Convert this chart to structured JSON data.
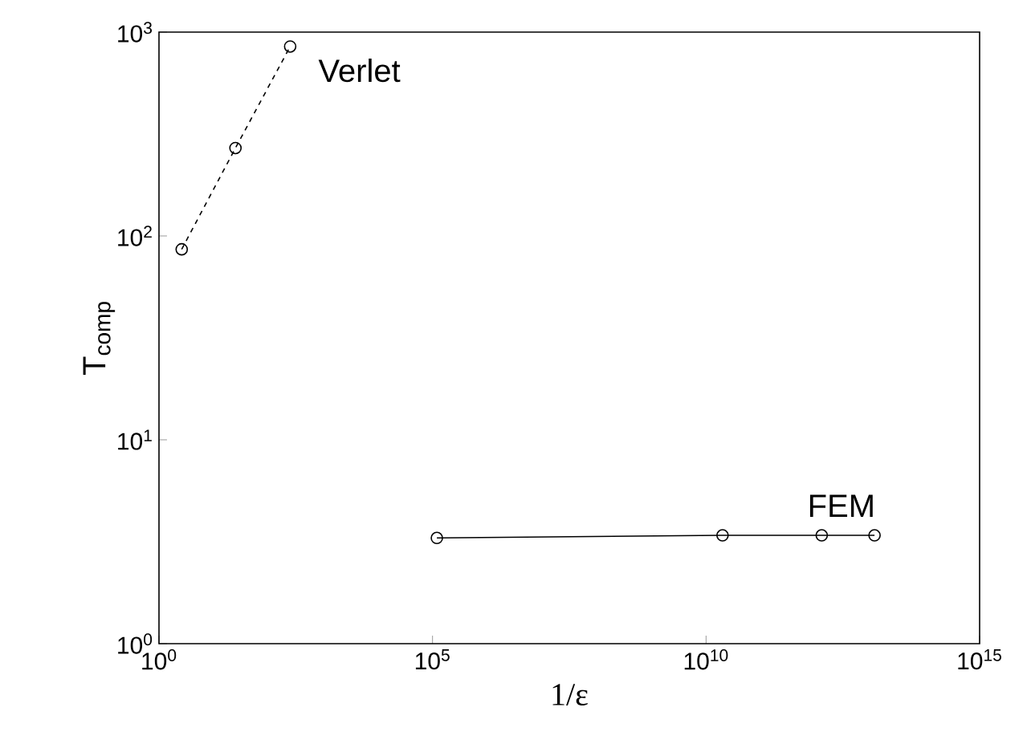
{
  "chart_data": {
    "type": "line",
    "xlabel": "1/ε",
    "ylabel": "T$_{comp}$",
    "log": "xy",
    "marker": "circle",
    "xlim": [
      1,
      1000000000000000.0
    ],
    "ylim": [
      1,
      1000
    ],
    "xticks": [
      {
        "value": 1,
        "label": "10$^{0}$"
      },
      {
        "value": 100000.0,
        "label": "10$^{5}$"
      },
      {
        "value": 10000000000.0,
        "label": "10$^{10}$"
      },
      {
        "value": 1000000000000000.0,
        "label": "10$^{15}$"
      }
    ],
    "yticks": [
      {
        "value": 1,
        "label": "10$^{0}$"
      },
      {
        "value": 10,
        "label": "10$^{1}$"
      },
      {
        "value": 100,
        "label": "10$^{2}$"
      },
      {
        "value": 1000,
        "label": "10$^{3}$"
      }
    ],
    "series": [
      {
        "name": "Verlet",
        "color": "#000000",
        "line_style": "dashed",
        "x": [
          2.6,
          25,
          250
        ],
        "values": [
          86,
          270,
          850
        ]
      },
      {
        "name": "FEM",
        "color": "#000000",
        "line_style": "solid",
        "x": [
          120000.0,
          20000000000.0,
          1300000000000.0,
          12000000000000.0
        ],
        "values": [
          3.3,
          3.4,
          3.4,
          3.4
        ]
      }
    ]
  }
}
